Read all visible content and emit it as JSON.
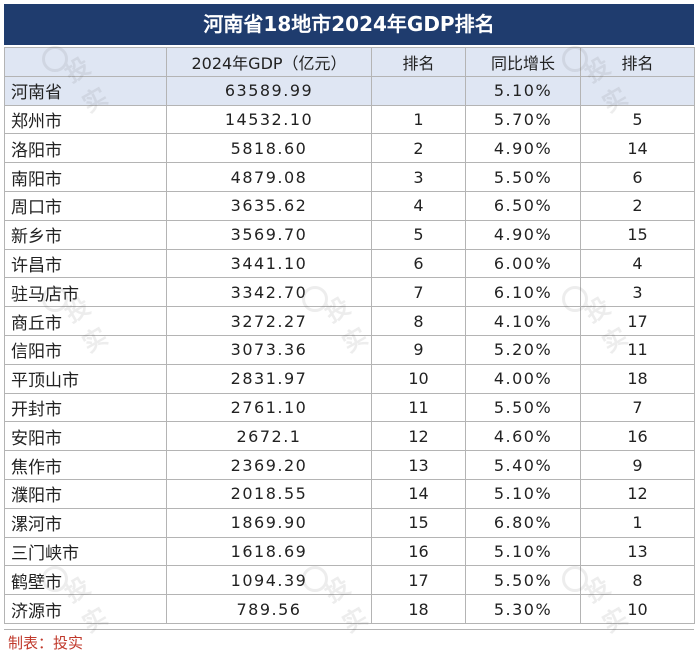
{
  "title": "河南省18地市2024年GDP排名",
  "watermark_text": "投实",
  "headers": [
    "",
    "2024年GDP（亿元）",
    "排名",
    "同比增长",
    "排名"
  ],
  "province_row": {
    "name": "河南省",
    "gdp": "63589.99",
    "rank": "",
    "growth": "5.10%",
    "growth_rank": ""
  },
  "rows": [
    {
      "name": "郑州市",
      "gdp": "14532.10",
      "rank": "1",
      "growth": "5.70%",
      "growth_rank": "5"
    },
    {
      "name": "洛阳市",
      "gdp": "5818.60",
      "rank": "2",
      "growth": "4.90%",
      "growth_rank": "14"
    },
    {
      "name": "南阳市",
      "gdp": "4879.08",
      "rank": "3",
      "growth": "5.50%",
      "growth_rank": "6"
    },
    {
      "name": "周口市",
      "gdp": "3635.62",
      "rank": "4",
      "growth": "6.50%",
      "growth_rank": "2"
    },
    {
      "name": "新乡市",
      "gdp": "3569.70",
      "rank": "5",
      "growth": "4.90%",
      "growth_rank": "15"
    },
    {
      "name": "许昌市",
      "gdp": "3441.10",
      "rank": "6",
      "growth": "6.00%",
      "growth_rank": "4"
    },
    {
      "name": "驻马店市",
      "gdp": "3342.70",
      "rank": "7",
      "growth": "6.10%",
      "growth_rank": "3"
    },
    {
      "name": "商丘市",
      "gdp": "3272.27",
      "rank": "8",
      "growth": "4.10%",
      "growth_rank": "17"
    },
    {
      "name": "信阳市",
      "gdp": "3073.36",
      "rank": "9",
      "growth": "5.20%",
      "growth_rank": "11"
    },
    {
      "name": "平顶山市",
      "gdp": "2831.97",
      "rank": "10",
      "growth": "4.00%",
      "growth_rank": "18"
    },
    {
      "name": "开封市",
      "gdp": "2761.10",
      "rank": "11",
      "growth": "5.50%",
      "growth_rank": "7"
    },
    {
      "name": "安阳市",
      "gdp": "2672.1",
      "rank": "12",
      "growth": "4.60%",
      "growth_rank": "16"
    },
    {
      "name": "焦作市",
      "gdp": "2369.20",
      "rank": "13",
      "growth": "5.40%",
      "growth_rank": "9"
    },
    {
      "name": "濮阳市",
      "gdp": "2018.55",
      "rank": "14",
      "growth": "5.10%",
      "growth_rank": "12"
    },
    {
      "name": "漯河市",
      "gdp": "1869.90",
      "rank": "15",
      "growth": "6.80%",
      "growth_rank": "1"
    },
    {
      "name": "三门峡市",
      "gdp": "1618.69",
      "rank": "16",
      "growth": "5.10%",
      "growth_rank": "13"
    },
    {
      "name": "鹤壁市",
      "gdp": "1094.39",
      "rank": "17",
      "growth": "5.50%",
      "growth_rank": "8"
    },
    {
      "name": "济源市",
      "gdp": "789.56",
      "rank": "18",
      "growth": "5.30%",
      "growth_rank": "10"
    }
  ],
  "footer": "制表：投实",
  "colors": {
    "title_bg": "#1f3c6e",
    "header_bg": "#dfe6f3",
    "footer_text": "#c0392b"
  }
}
